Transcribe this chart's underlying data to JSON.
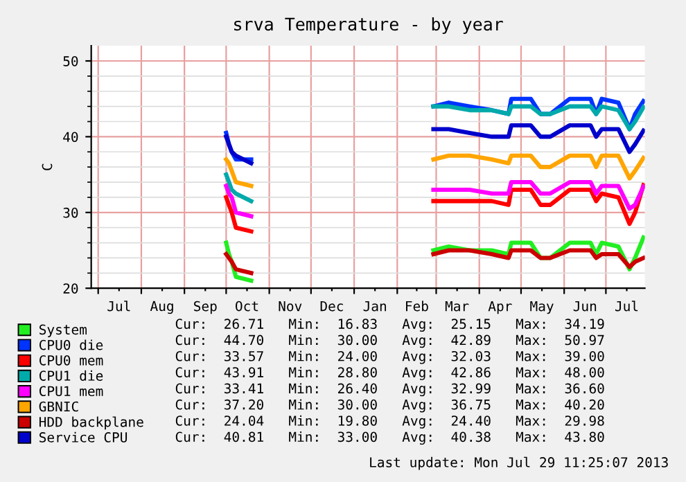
{
  "chart_data": {
    "type": "line",
    "title": "srva Temperature - by year",
    "ylabel": "C",
    "x": [
      "2012-10-01",
      "2012-10-03",
      "2012-10-05",
      "2012-10-08",
      "2012-10-19",
      "2012-11-01",
      "2013-02-27",
      "2013-03-10",
      "2013-03-25",
      "2013-04-10",
      "2013-04-22",
      "2013-04-24",
      "2013-05-08",
      "2013-05-15",
      "2013-05-22",
      "2013-06-05",
      "2013-06-20",
      "2013-06-24",
      "2013-06-28",
      "2013-07-10",
      "2013-07-18",
      "2013-07-22",
      "2013-07-28"
    ],
    "series": [
      {
        "name": "System",
        "color": "#22ee22",
        "values": [
          26,
          24.5,
          23.5,
          21.5,
          21,
          null,
          25,
          25.5,
          25,
          25,
          24.5,
          26,
          26,
          24,
          24,
          26,
          26,
          24.5,
          26,
          25.5,
          22.5,
          24,
          26.7
        ]
      },
      {
        "name": "CPU0 die",
        "color": "#0033ff",
        "values": [
          40.5,
          39,
          38,
          37,
          37,
          null,
          44,
          44.5,
          44,
          43.5,
          43,
          45,
          45,
          43,
          43,
          45,
          45,
          43,
          45,
          44.5,
          41,
          43,
          44.7
        ]
      },
      {
        "name": "CPU0 mem",
        "color": "#ff0000",
        "values": [
          32,
          31,
          30,
          28,
          27.5,
          null,
          31.5,
          31.5,
          31.5,
          31.5,
          31,
          33,
          33,
          31,
          31,
          33,
          33,
          31.5,
          32.5,
          32,
          28.5,
          30,
          33.6
        ]
      },
      {
        "name": "CPU1 die",
        "color": "#00aaaa",
        "values": [
          35,
          34,
          33,
          32.5,
          31.5,
          null,
          44,
          44,
          43.5,
          43.5,
          43,
          44,
          44,
          43,
          43,
          44,
          44,
          43,
          44,
          43.5,
          41,
          42,
          43.9
        ]
      },
      {
        "name": "CPU1 mem",
        "color": "#ff00ff",
        "values": [
          33.5,
          32.5,
          32,
          30,
          29.5,
          null,
          33,
          33,
          33,
          32.5,
          32.5,
          34,
          34,
          32.5,
          32.5,
          34,
          34,
          32.5,
          33.5,
          33.5,
          30.5,
          31,
          33.4
        ]
      },
      {
        "name": "GBNIC",
        "color": "#ffa500",
        "values": [
          37,
          36.5,
          35.5,
          34,
          33.5,
          null,
          37,
          37.5,
          37.5,
          37,
          36.5,
          37.5,
          37.5,
          36,
          36,
          37.5,
          37.5,
          36,
          37.5,
          37.5,
          34.5,
          35.5,
          37.2
        ]
      },
      {
        "name": "HDD backplane",
        "color": "#cc0000",
        "values": [
          24.5,
          24,
          23.5,
          22.5,
          22,
          null,
          24.5,
          25,
          25,
          24.5,
          24,
          25,
          25,
          24,
          24,
          25,
          25,
          24,
          24.5,
          24.5,
          22.8,
          23.5,
          24
        ]
      },
      {
        "name": "Service CPU",
        "color": "#0000cc",
        "values": [
          40,
          39,
          38,
          37.5,
          36.5,
          null,
          41,
          41,
          40.5,
          40,
          40,
          41.5,
          41.5,
          40,
          40,
          41.5,
          41.5,
          40,
          41,
          41,
          38,
          39,
          40.8
        ]
      }
    ],
    "xlim": [
      "2012-06-26",
      "2013-07-29"
    ],
    "xticks": [
      {
        "value": "2012-07-01",
        "label": null
      },
      {
        "value": "2012-07-16",
        "label": "Jul"
      },
      {
        "value": "2012-08-01",
        "label": null
      },
      {
        "value": "2012-08-16",
        "label": "Aug"
      },
      {
        "value": "2012-09-01",
        "label": null
      },
      {
        "value": "2012-09-16",
        "label": "Sep"
      },
      {
        "value": "2012-10-01",
        "label": null
      },
      {
        "value": "2012-10-16",
        "label": "Oct"
      },
      {
        "value": "2012-11-01",
        "label": null
      },
      {
        "value": "2012-11-16",
        "label": "Nov"
      },
      {
        "value": "2012-12-01",
        "label": null
      },
      {
        "value": "2012-12-16",
        "label": "Dec"
      },
      {
        "value": "2013-01-01",
        "label": null
      },
      {
        "value": "2013-01-16",
        "label": "Jan"
      },
      {
        "value": "2013-02-01",
        "label": null
      },
      {
        "value": "2013-02-15",
        "label": "Feb"
      },
      {
        "value": "2013-03-01",
        "label": null
      },
      {
        "value": "2013-03-16",
        "label": "Mar"
      },
      {
        "value": "2013-04-01",
        "label": null
      },
      {
        "value": "2013-04-16",
        "label": "Apr"
      },
      {
        "value": "2013-05-01",
        "label": null
      },
      {
        "value": "2013-05-16",
        "label": "May"
      },
      {
        "value": "2013-06-01",
        "label": null
      },
      {
        "value": "2013-06-16",
        "label": "Jun"
      },
      {
        "value": "2013-07-01",
        "label": null
      },
      {
        "value": "2013-07-16",
        "label": "Jul"
      }
    ],
    "ylim": [
      20,
      52
    ],
    "yticks": [
      20,
      {
        "value": 22,
        "label": null
      },
      {
        "value": 24,
        "label": null
      },
      {
        "value": 26,
        "label": null
      },
      {
        "value": 28,
        "label": null
      },
      30,
      {
        "value": 32,
        "label": null
      },
      {
        "value": 34,
        "label": null
      },
      {
        "value": 36,
        "label": null
      },
      {
        "value": 38,
        "label": null
      },
      40,
      {
        "value": 42,
        "label": null
      },
      {
        "value": 44,
        "label": null
      },
      {
        "value": 46,
        "label": null
      },
      {
        "value": 48,
        "label": null
      },
      50
    ],
    "grid": true,
    "legend": "bottom",
    "marker": "none",
    "line_style": "solid",
    "annotations": [
      "Cur:  26.71   Min:  16.83   Avg:  25.15   Max:  34.19",
      "Cur:  44.70   Min:  30.00   Avg:  42.89   Max:  50.97",
      "Cur:  33.57   Min:  24.00   Avg:  32.03   Max:  39.00",
      "Cur:  43.91   Min:  28.80   Avg:  42.86   Max:  48.00",
      "Cur:  33.41   Min:  26.40   Avg:  32.99   Max:  36.60",
      "Cur:  37.20   Min:  30.00   Avg:  36.75   Max:  40.20",
      "Cur:  24.04   Min:  19.80   Avg:  24.40   Max:  29.98",
      "Cur:  40.81   Min:  33.00   Avg:  40.38   Max:  43.80",
      "Last update: Mon Jul 29 11:25:07 2013"
    ]
  }
}
